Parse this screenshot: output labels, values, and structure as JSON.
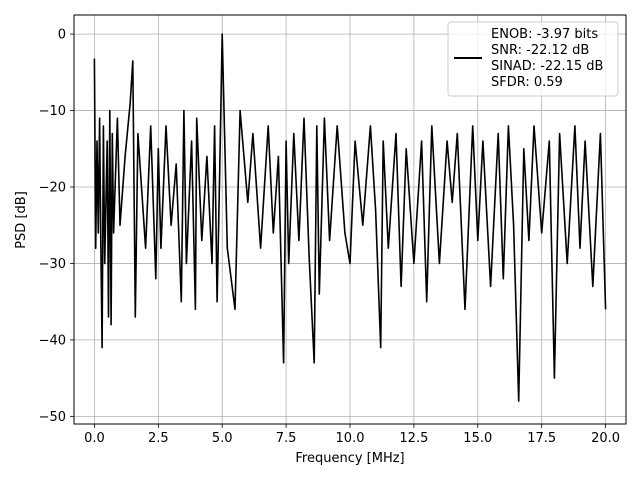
{
  "chart_data": {
    "type": "line",
    "title": "",
    "xlabel": "Frequency [MHz]",
    "ylabel": "PSD [dB]",
    "xlim": [
      -0.8,
      20.8
    ],
    "ylim": [
      -51,
      2.5
    ],
    "xticks": [
      0.0,
      2.5,
      5.0,
      7.5,
      10.0,
      12.5,
      15.0,
      17.5,
      20.0
    ],
    "xtick_labels": [
      "0.0",
      "2.5",
      "5.0",
      "7.5",
      "10.0",
      "12.5",
      "15.0",
      "17.5",
      "20.0"
    ],
    "yticks": [
      0,
      -10,
      -20,
      -30,
      -40,
      -50
    ],
    "ytick_labels": [
      "0",
      "−10",
      "−20",
      "−30",
      "−40",
      "−50"
    ],
    "grid": true,
    "legend_position": "top-right",
    "legend_entries": [
      "ENOB: -3.97 bits",
      "SNR: -22.12 dB",
      "SINAD: -22.15 dB",
      "SFDR: 0.59"
    ],
    "series": [
      {
        "color": "#000000",
        "x": [
          0.0,
          0.05,
          0.1,
          0.15,
          0.2,
          0.25,
          0.3,
          0.35,
          0.4,
          0.5,
          0.55,
          0.6,
          0.65,
          0.7,
          0.75,
          0.9,
          1.0,
          1.2,
          1.4,
          1.5,
          1.6,
          1.7,
          2.0,
          2.2,
          2.4,
          2.5,
          2.6,
          2.8,
          3.0,
          3.2,
          3.4,
          3.5,
          3.6,
          3.8,
          3.95,
          4.0,
          4.2,
          4.4,
          4.6,
          4.7,
          4.8,
          4.9,
          5.0,
          5.2,
          5.5,
          5.7,
          6.0,
          6.2,
          6.5,
          6.8,
          7.0,
          7.2,
          7.4,
          7.5,
          7.6,
          7.8,
          8.0,
          8.2,
          8.4,
          8.6,
          8.7,
          8.8,
          9.0,
          9.2,
          9.5,
          9.8,
          10.0,
          10.2,
          10.5,
          10.8,
          11.0,
          11.2,
          11.3,
          11.5,
          11.8,
          12.0,
          12.2,
          12.5,
          12.8,
          13.0,
          13.2,
          13.5,
          13.8,
          14.0,
          14.2,
          14.5,
          14.8,
          15.0,
          15.2,
          15.5,
          15.8,
          16.0,
          16.2,
          16.4,
          16.6,
          16.8,
          17.0,
          17.2,
          17.5,
          17.8,
          18.0,
          18.2,
          18.5,
          18.8,
          19.0,
          19.2,
          19.5,
          19.8,
          20.0
        ],
        "y": [
          -3.2,
          -28,
          -14,
          -26,
          -11,
          -27,
          -41,
          -12,
          -30,
          -14,
          -37,
          -10,
          -38,
          -13,
          -26,
          -11,
          -25,
          -16,
          -9,
          -3.5,
          -37,
          -13,
          -28,
          -12,
          -32,
          -15,
          -28,
          -12,
          -25,
          -17,
          -35,
          -10,
          -30,
          -14,
          -36,
          -11,
          -27,
          -16,
          -30,
          -12,
          -35,
          -18,
          0,
          -28,
          -36,
          -10,
          -22,
          -13,
          -28,
          -12,
          -26,
          -16,
          -43,
          -14,
          -30,
          -13,
          -27,
          -11,
          -29,
          -43,
          -12,
          -34,
          -11,
          -27,
          -12,
          -26,
          -30,
          -14,
          -25,
          -12,
          -23,
          -41,
          -14,
          -28,
          -13,
          -33,
          -15,
          -30,
          -14,
          -35,
          -12,
          -30,
          -14,
          -22,
          -13,
          -36,
          -12,
          -27,
          -14,
          -33,
          -13,
          -32,
          -12,
          -25,
          -48,
          -15,
          -27,
          -12,
          -26,
          -14,
          -45,
          -13,
          -30,
          -12,
          -28,
          -14,
          -33,
          -13,
          -36
        ]
      }
    ]
  }
}
